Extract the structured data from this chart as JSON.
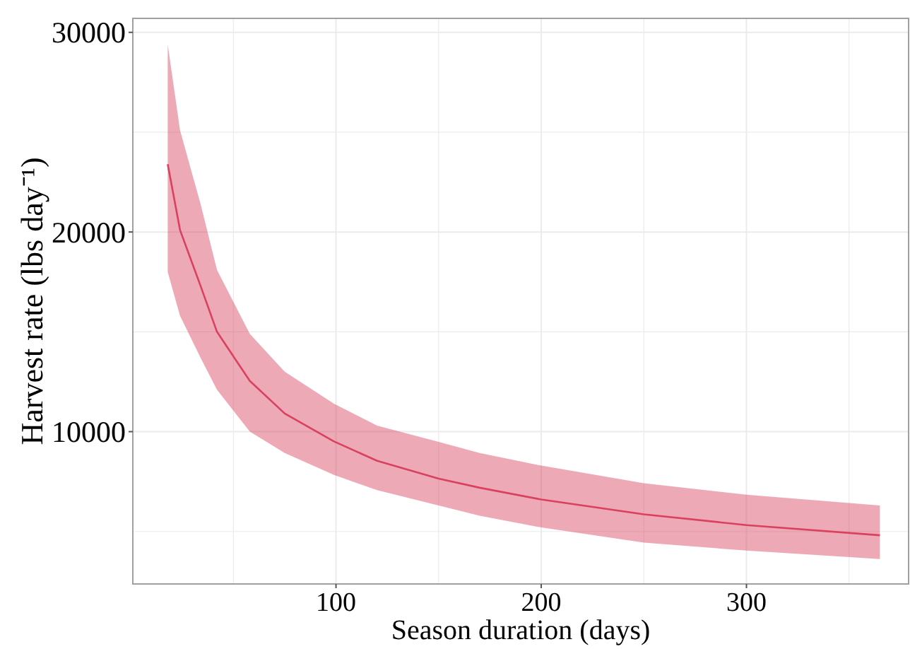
{
  "chart_data": {
    "type": "line",
    "xlabel": "Season duration (days)",
    "ylabel": "Harvest rate (lbs day⁻¹)",
    "xlim": [
      1,
      379
    ],
    "xticks": [
      {
        "value": 50,
        "label": null
      },
      100,
      {
        "value": 150,
        "label": null
      },
      200,
      {
        "value": 250,
        "label": null
      },
      300,
      {
        "value": 350,
        "label": null
      }
    ],
    "ylim": [
      2370,
      30700
    ],
    "yticks": [
      {
        "value": 5000,
        "label": null
      },
      10000,
      {
        "value": 15000,
        "label": null
      },
      20000,
      {
        "value": 25000,
        "label": null
      },
      30000
    ],
    "grid": true,
    "marker": "none",
    "line_style": "solid",
    "series": [
      {
        "color": "#d9415f",
        "x": [
          18,
          24,
          34,
          42,
          58,
          75,
          99,
          120,
          150,
          170,
          200,
          250,
          300,
          365
        ],
        "values": [
          23400,
          20100,
          17300,
          15000,
          12540,
          10910,
          9510,
          8540,
          7650,
          7190,
          6600,
          5860,
          5320,
          4810
        ],
        "lower": [
          18000,
          15800,
          13700,
          12100,
          10000,
          8930,
          7830,
          7070,
          6300,
          5790,
          5200,
          4440,
          4040,
          3620
        ],
        "upper": [
          29400,
          25100,
          21400,
          18100,
          14900,
          13000,
          11400,
          10300,
          9490,
          8930,
          8300,
          7420,
          6840,
          6300
        ]
      }
    ]
  }
}
